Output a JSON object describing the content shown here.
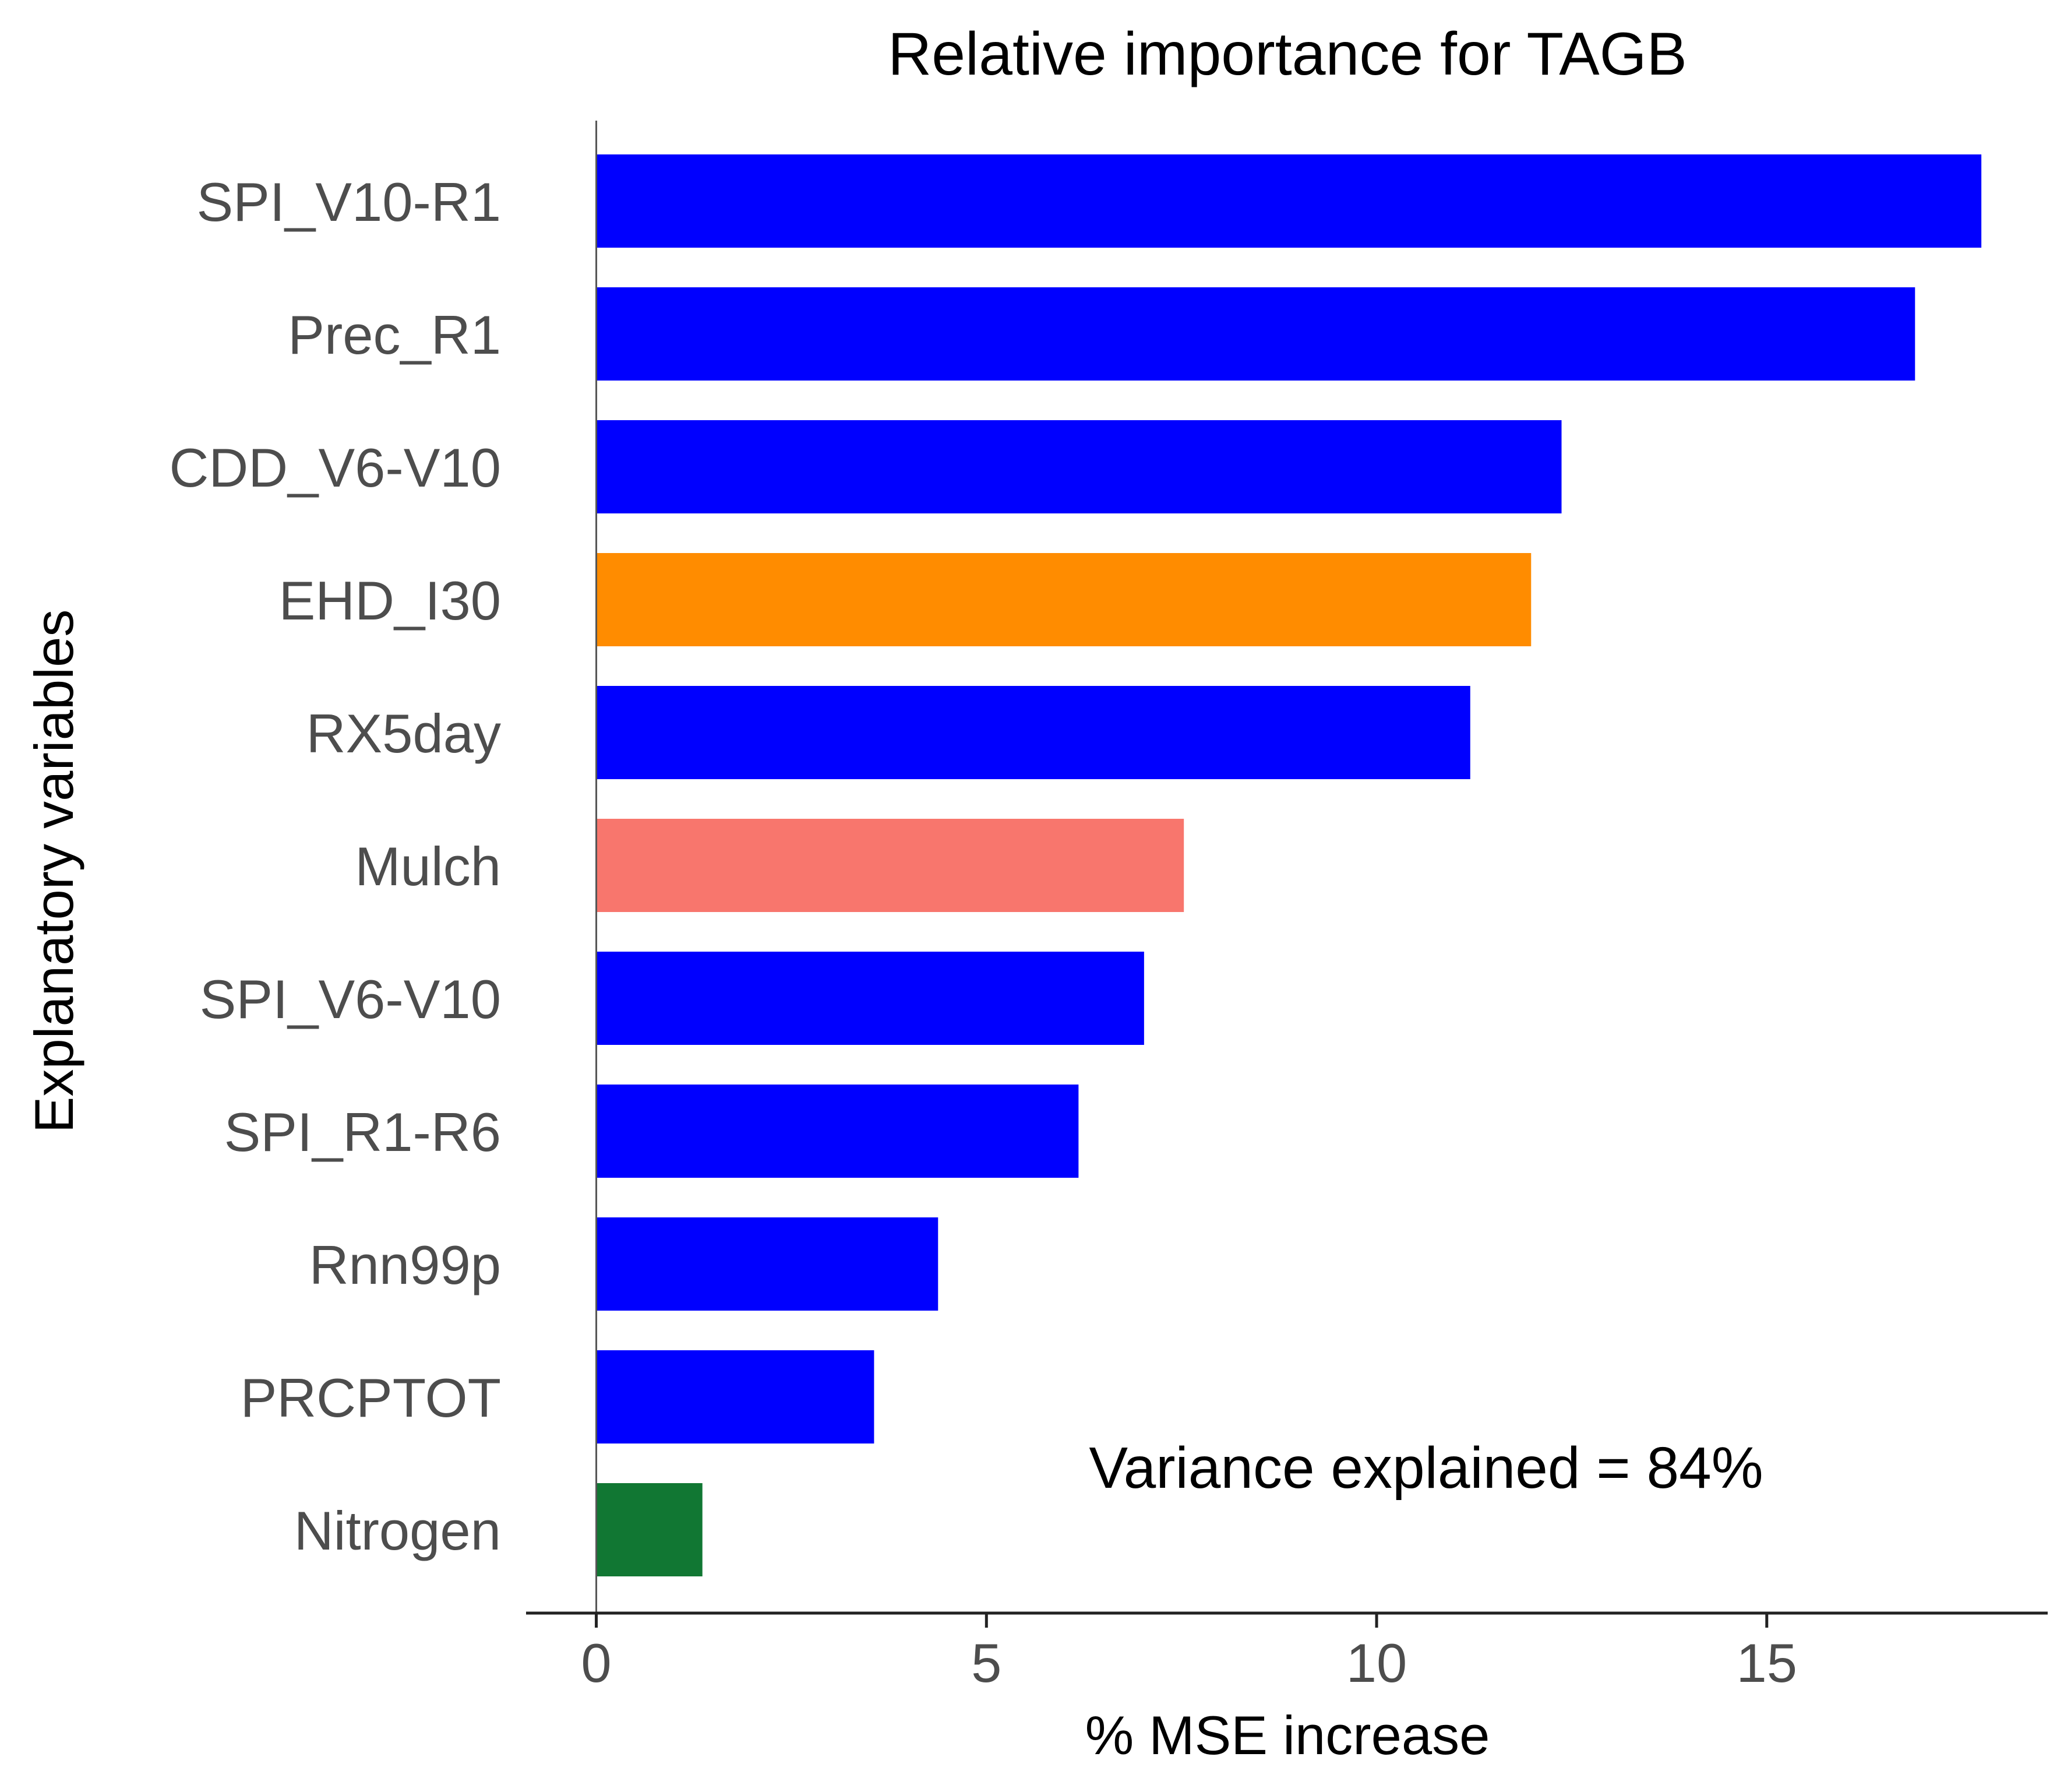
{
  "chart_data": {
    "type": "bar",
    "orientation": "horizontal",
    "title": "Relative importance for TAGB",
    "xlabel": "% MSE increase",
    "ylabel": "Explanatory variables",
    "xlim": [
      -0.9,
      18.6
    ],
    "xticks": [
      0,
      5,
      10,
      15
    ],
    "grid": false,
    "annotation": "Variance explained = 84%",
    "categories": [
      "SPI_V10-R1",
      "Prec_R1",
      "CDD_V6-V10",
      "EHD_I30",
      "RX5day",
      "Mulch",
      "SPI_V6-V10",
      "SPI_R1-R6",
      "Rnn99p",
      "PRCPTOT",
      "Nitrogen"
    ],
    "values": [
      17.75,
      16.9,
      12.37,
      11.98,
      11.2,
      7.53,
      7.02,
      6.18,
      4.38,
      3.56,
      1.36
    ],
    "colors": [
      "#0000ff",
      "#0000ff",
      "#0000ff",
      "#ff8c00",
      "#0000ff",
      "#f8766d",
      "#0000ff",
      "#0000ff",
      "#0000ff",
      "#0000ff",
      "#117733"
    ]
  }
}
